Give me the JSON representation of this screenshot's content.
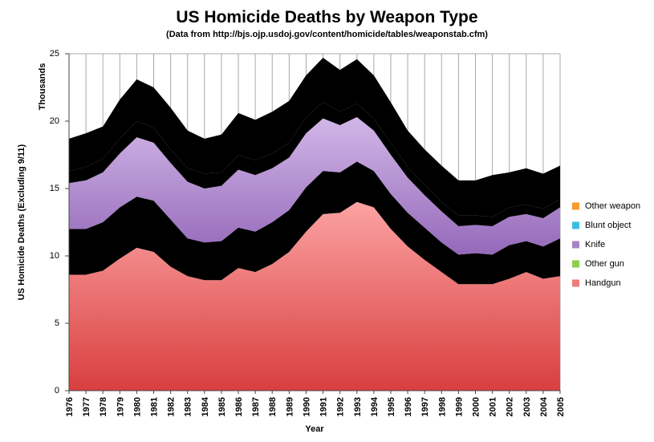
{
  "chart_data": {
    "type": "area",
    "stacked": true,
    "title": "US Homicide Deaths by Weapon Type",
    "subtitle": "(Data from http://bjs.ojp.usdoj.gov/content/homicide/tables/weaponstab.cfm)",
    "xlabel": "Year",
    "ylabel": "US Homicide Deaths (Excluding 9/11)",
    "units_label": "Thousands",
    "ylim": [
      0,
      25
    ],
    "yticks": [
      "0",
      "5",
      "10",
      "15",
      "20",
      "25"
    ],
    "grid": "vertical",
    "legend_position": "right",
    "x": [
      "1976",
      "1977",
      "1978",
      "1979",
      "1980",
      "1981",
      "1982",
      "1983",
      "1984",
      "1985",
      "1986",
      "1987",
      "1988",
      "1989",
      "1990",
      "1991",
      "1992",
      "1993",
      "1994",
      "1995",
      "1996",
      "1997",
      "1998",
      "1999",
      "2000",
      "2001",
      "2002",
      "2003",
      "2004",
      "2005"
    ],
    "series": [
      {
        "name": "Handgun",
        "color": "#f07b7b",
        "values": [
          8.6,
          8.6,
          8.9,
          9.8,
          10.6,
          10.3,
          9.2,
          8.5,
          8.2,
          8.2,
          9.1,
          8.8,
          9.4,
          10.3,
          11.8,
          13.1,
          13.2,
          14.0,
          13.6,
          12.0,
          10.7,
          9.7,
          8.8,
          7.9,
          7.9,
          7.9,
          8.3,
          8.8,
          8.3,
          8.5
        ]
      },
      {
        "name": "Other gun",
        "color": "#8ecf4c",
        "values": [
          3.4,
          3.4,
          3.6,
          3.8,
          3.8,
          3.8,
          3.5,
          2.8,
          2.8,
          2.9,
          3.0,
          3.0,
          3.1,
          3.1,
          3.3,
          3.2,
          3.0,
          3.0,
          2.7,
          2.6,
          2.5,
          2.4,
          2.2,
          2.2,
          2.3,
          2.2,
          2.5,
          2.3,
          2.4,
          2.8
        ]
      },
      {
        "name": "Knife",
        "color": "#a884c4",
        "values": [
          3.4,
          3.6,
          3.7,
          4.0,
          4.4,
          4.3,
          4.2,
          4.2,
          4.0,
          4.1,
          4.3,
          4.2,
          4.0,
          3.9,
          4.0,
          3.9,
          3.5,
          3.3,
          3.0,
          2.9,
          2.6,
          2.4,
          2.3,
          2.1,
          2.1,
          2.1,
          2.1,
          2.0,
          2.1,
          2.3
        ]
      },
      {
        "name": "Blunt object",
        "color": "#3cbde0",
        "values": [
          0.9,
          1.0,
          1.0,
          1.1,
          1.2,
          1.1,
          1.0,
          1.0,
          1.1,
          1.0,
          1.1,
          1.1,
          1.1,
          1.1,
          1.2,
          1.2,
          1.0,
          1.0,
          0.9,
          0.9,
          0.8,
          0.8,
          0.7,
          0.8,
          0.7,
          0.7,
          0.7,
          0.7,
          0.7,
          0.6
        ]
      },
      {
        "name": "Other weapon",
        "color": "#f99a2a",
        "values": [
          2.4,
          2.5,
          2.4,
          2.9,
          3.1,
          3.0,
          3.1,
          2.8,
          2.6,
          2.8,
          3.1,
          3.0,
          3.1,
          3.1,
          3.1,
          3.3,
          3.1,
          3.3,
          3.2,
          3.0,
          2.7,
          2.6,
          2.7,
          2.6,
          2.6,
          3.1,
          2.6,
          2.7,
          2.6,
          2.5
        ]
      }
    ]
  }
}
